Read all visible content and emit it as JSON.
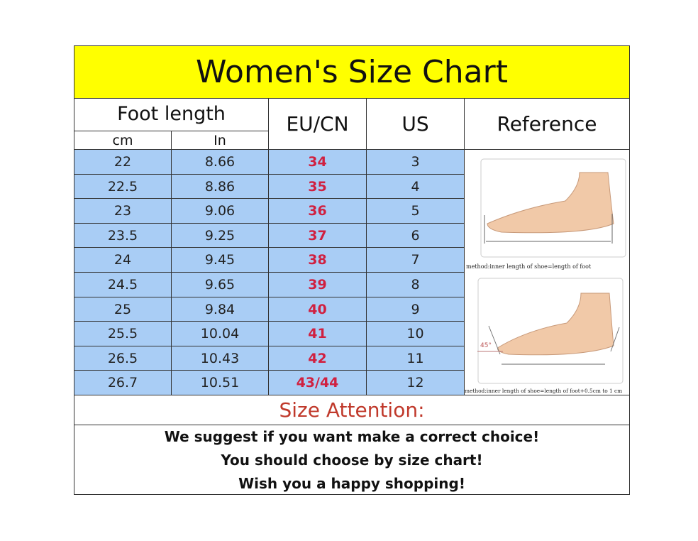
{
  "title": "Women's Size Chart",
  "headers": {
    "foot_length": "Foot length",
    "cm": "cm",
    "in": "In",
    "eu_cn": "EU/CN",
    "us": "US",
    "reference": "Reference"
  },
  "rows": [
    {
      "cm": "22",
      "in": "8.66",
      "eu": "34",
      "us": "3"
    },
    {
      "cm": "22.5",
      "in": "8.86",
      "eu": "35",
      "us": "4"
    },
    {
      "cm": "23",
      "in": "9.06",
      "eu": "36",
      "us": "5"
    },
    {
      "cm": "23.5",
      "in": "9.25",
      "eu": "37",
      "us": "6"
    },
    {
      "cm": "24",
      "in": "9.45",
      "eu": "38",
      "us": "7"
    },
    {
      "cm": "24.5",
      "in": "9.65",
      "eu": "39",
      "us": "8"
    },
    {
      "cm": "25",
      "in": "9.84",
      "eu": "40",
      "us": "9"
    },
    {
      "cm": "25.5",
      "in": "10.04",
      "eu": "41",
      "us": "10"
    },
    {
      "cm": "26.5",
      "in": "10.43",
      "eu": "42",
      "us": "11"
    },
    {
      "cm": "26.7",
      "in": "10.51",
      "eu": "43/44",
      "us": "12"
    }
  ],
  "reference": {
    "caption1": "method:inner length of shoe=length of foot",
    "caption2": "method:inner length of shoe=length of foot+0.5cm to 1 cm",
    "angle": "45°"
  },
  "attention": {
    "title": "Size Attention:",
    "lines": [
      "We suggest if you want make a correct choice!",
      "You should choose by size chart!",
      "Wish you a happy shopping!"
    ]
  },
  "colors": {
    "title_bg": "#ffff00",
    "row_bg": "#a9cdf5",
    "eu_text": "#d02040",
    "attention_text": "#c0392b"
  }
}
